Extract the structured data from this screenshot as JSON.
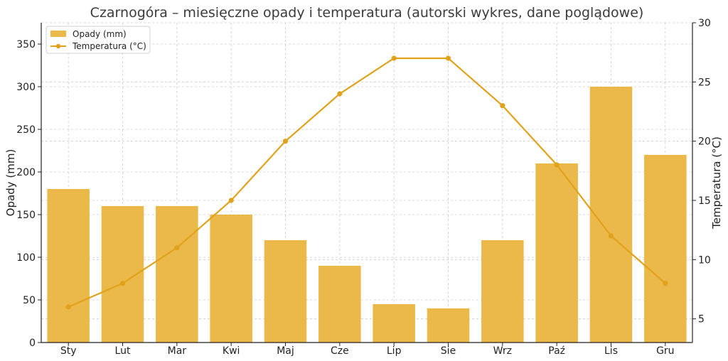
{
  "chart_data": {
    "type": "bar",
    "title": "Czarnogóra – miesięczne opady i temperatura (autorski wykres, dane poglądowe)",
    "categories": [
      "Sty",
      "Lut",
      "Mar",
      "Kwi",
      "Maj",
      "Cze",
      "Lip",
      "Sie",
      "Wrz",
      "Paź",
      "Lis",
      "Gru"
    ],
    "series": [
      {
        "name": "Opady (mm)",
        "type": "bar",
        "axis": "left",
        "values": [
          180,
          160,
          160,
          150,
          120,
          90,
          45,
          40,
          120,
          210,
          300,
          220
        ]
      },
      {
        "name": "Temperatura (°C)",
        "type": "line",
        "axis": "right",
        "values": [
          6,
          8,
          11,
          15,
          20,
          24,
          27,
          27,
          23,
          18,
          12,
          8
        ]
      }
    ],
    "ylabel": "Opady (mm)",
    "y2label": "Temperatura (°C)",
    "ylim": [
      0,
      375
    ],
    "y2lim": [
      3,
      30
    ],
    "yticks": [
      0,
      50,
      100,
      150,
      200,
      250,
      300,
      350
    ],
    "y2ticks": [
      5,
      10,
      15,
      20,
      25,
      30
    ],
    "grid": true,
    "legend_position": "top-left",
    "colors": {
      "bar": "#ebb84a",
      "line": "#e0a21a",
      "grid": "#cccccc",
      "axis": "#222222",
      "title": "#3b3b3b"
    }
  }
}
